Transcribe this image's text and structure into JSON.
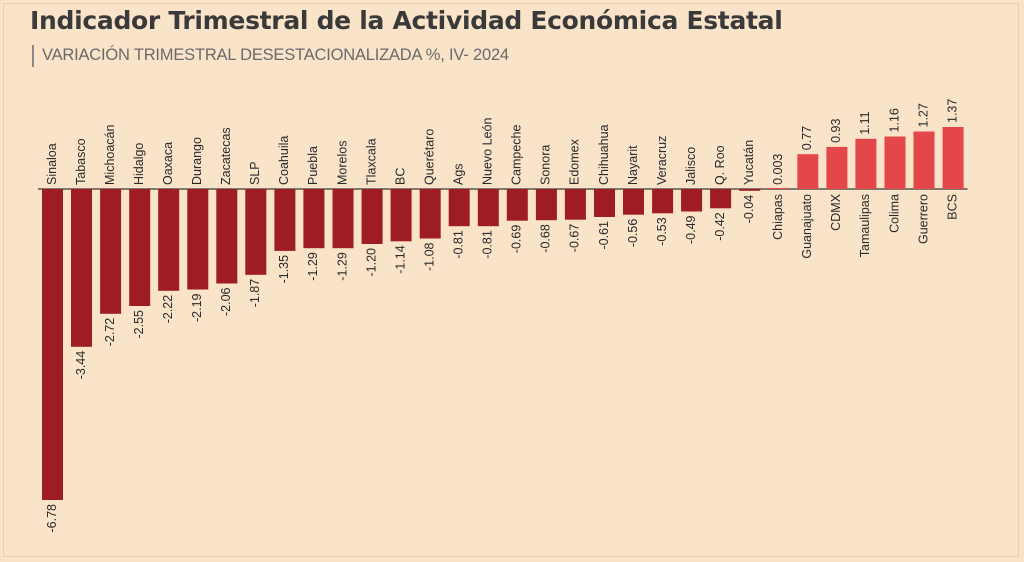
{
  "chart_data": {
    "type": "bar",
    "title": "Indicador Trimestral de la Actividad Económica Estatal",
    "subtitle": "VARIACIÓN TRIMESTRAL DESESTACIONALIZADA %, IV- 2024",
    "xlabel": "",
    "ylabel": "",
    "ylim": [
      -6.78,
      1.37
    ],
    "categories": [
      "Sinaloa",
      "Tabasco",
      "Michoacán",
      "Hidalgo",
      "Oaxaca",
      "Durango",
      "Zacatecas",
      "SLP",
      "Coahuila",
      "Puebla",
      "Morelos",
      "Tlaxcala",
      "BC",
      "Querétaro",
      "Ags",
      "Nuevo León",
      "Campeche",
      "Sonora",
      "Edomex",
      "Chihuahua",
      "Nayarit",
      "Veracruz",
      "Jalisco",
      "Q. Roo",
      "Yucatán",
      "Chiapas",
      "Guanajuato",
      "CDMX",
      "Tamaulipas",
      "Colima",
      "Guerrero",
      "BCS"
    ],
    "values": [
      -6.78,
      -3.44,
      -2.72,
      -2.55,
      -2.22,
      -2.19,
      -2.06,
      -1.87,
      -1.35,
      -1.29,
      -1.29,
      -1.2,
      -1.14,
      -1.08,
      -0.81,
      -0.81,
      -0.69,
      -0.68,
      -0.67,
      -0.61,
      -0.56,
      -0.53,
      -0.49,
      -0.42,
      -0.04,
      0.003,
      0.77,
      0.93,
      1.11,
      1.16,
      1.27,
      1.37
    ],
    "value_labels": [
      "-6.78",
      "-3.44",
      "-2.72",
      "-2.55",
      "-2.22",
      "-2.19",
      "-2.06",
      "-1.87",
      "-1.35",
      "-1.29",
      "-1.29",
      "-1.20",
      "-1.14",
      "-1.08",
      "-0.81",
      "-0.81",
      "-0.69",
      "-0.68",
      "-0.67",
      "-0.61",
      "-0.56",
      "-0.53",
      "-0.49",
      "-0.42",
      "-0.04",
      "0.003",
      "0.77",
      "0.93",
      "1.11",
      "1.16",
      "1.27",
      "1.37"
    ],
    "colors": {
      "negative": "#9e1d23",
      "positive": "#e4474a",
      "axis": "#3a3a3a",
      "text": "#2a2a2a",
      "background": "#f9e3c9"
    }
  }
}
